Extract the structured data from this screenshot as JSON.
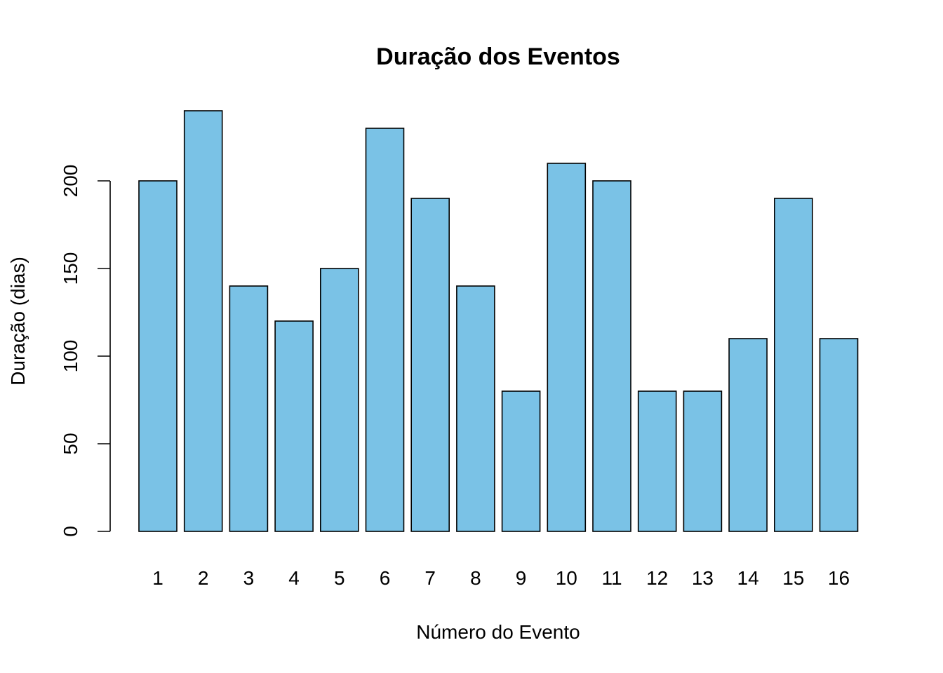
{
  "chart_data": {
    "type": "bar",
    "title": "Duração dos Eventos",
    "xlabel": "Número do Evento",
    "ylabel": "Duração (dias)",
    "categories": [
      "1",
      "2",
      "3",
      "4",
      "5",
      "6",
      "7",
      "8",
      "9",
      "10",
      "11",
      "12",
      "13",
      "14",
      "15",
      "16"
    ],
    "values": [
      200,
      240,
      140,
      120,
      150,
      230,
      190,
      140,
      80,
      210,
      200,
      80,
      80,
      110,
      190,
      110
    ],
    "yticks": [
      0,
      50,
      100,
      150,
      200
    ],
    "ylim": [
      0,
      240
    ],
    "bar_color": "#7AC2E6",
    "grid": false,
    "legend": "none"
  }
}
